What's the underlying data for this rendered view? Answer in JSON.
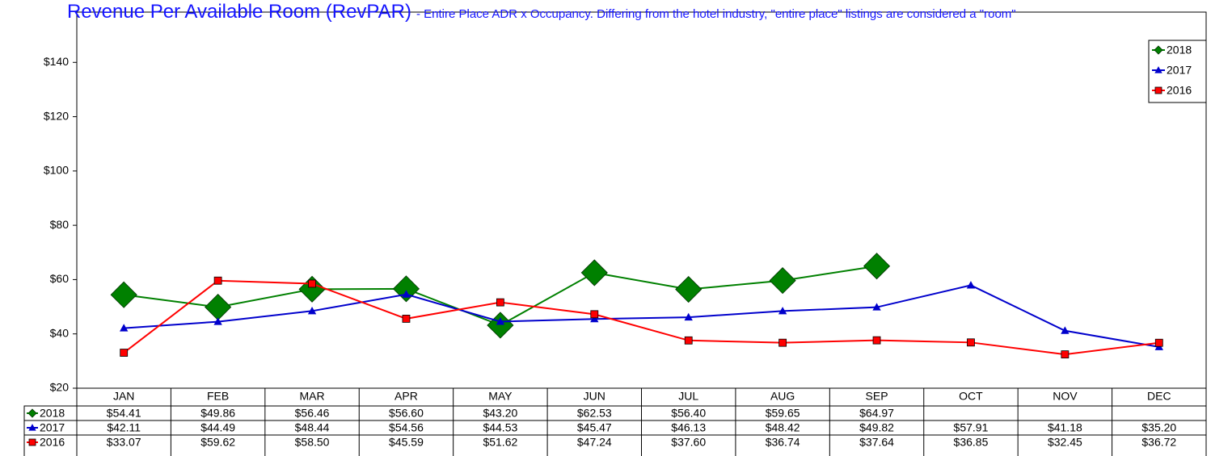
{
  "chart_data": {
    "type": "line",
    "title": "Revenue Per Available Room (RevPAR)",
    "subtitle": "- Entire Place ADR x Occupancy. Differing from the hotel industry, \"entire place\" listings are considered a \"room\"",
    "categories": [
      "JAN",
      "FEB",
      "MAR",
      "APR",
      "MAY",
      "JUN",
      "JUL",
      "AUG",
      "SEP",
      "OCT",
      "NOV",
      "DEC"
    ],
    "ylim": [
      20,
      160
    ],
    "yticks": [
      {
        "value": 20,
        "label": "$20"
      },
      {
        "value": 40,
        "label": "$40"
      },
      {
        "value": 60,
        "label": "$60"
      },
      {
        "value": 80,
        "label": "$80"
      },
      {
        "value": 100,
        "label": "$100"
      },
      {
        "value": 120,
        "label": "$120"
      },
      {
        "value": 140,
        "label": "$140"
      }
    ],
    "legend": "top-right",
    "series": [
      {
        "name": "2018",
        "color": "#008000",
        "marker": "diamond",
        "values": [
          54.41,
          49.86,
          56.46,
          56.6,
          43.2,
          62.53,
          56.4,
          59.65,
          64.97,
          null,
          null,
          null
        ],
        "value_labels": [
          "$54.41",
          "$49.86",
          "$56.46",
          "$56.60",
          "$43.20",
          "$62.53",
          "$56.40",
          "$59.65",
          "$64.97",
          null,
          null,
          null
        ]
      },
      {
        "name": "2017",
        "color": "#0000cc",
        "marker": "triangle",
        "values": [
          42.11,
          44.49,
          48.44,
          54.56,
          44.53,
          45.47,
          46.13,
          48.42,
          49.82,
          57.91,
          41.18,
          35.2
        ],
        "value_labels": [
          "$42.11",
          "$44.49",
          "$48.44",
          "$54.56",
          "$44.53",
          "$45.47",
          "$46.13",
          "$48.42",
          "$49.82",
          "$57.91",
          "$41.18",
          "$35.20"
        ]
      },
      {
        "name": "2016",
        "color": "#ff0000",
        "marker": "square",
        "values": [
          33.07,
          59.62,
          58.5,
          45.59,
          51.62,
          47.24,
          37.6,
          36.74,
          37.64,
          36.85,
          32.45,
          36.72
        ],
        "value_labels": [
          "$33.07",
          "$59.62",
          "$58.50",
          "$45.59",
          "$51.62",
          "$47.24",
          "$37.60",
          "$36.74",
          "$37.64",
          "$36.85",
          "$32.45",
          "$36.72"
        ]
      }
    ]
  }
}
